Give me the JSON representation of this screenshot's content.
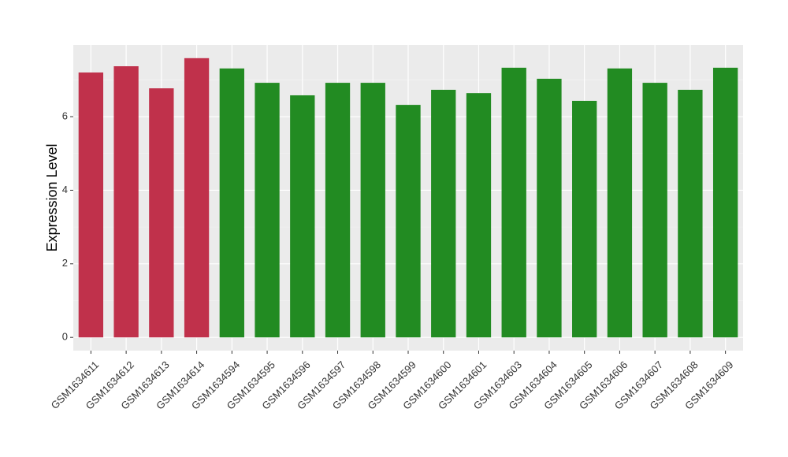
{
  "chart_data": {
    "type": "bar",
    "y_label": "Expression Level",
    "categories": [
      "GSM1634611",
      "GSM1634612",
      "GSM1634613",
      "GSM1634614",
      "GSM1634594",
      "GSM1634595",
      "GSM1634596",
      "GSM1634597",
      "GSM1634598",
      "GSM1634599",
      "GSM1634600",
      "GSM1634601",
      "GSM1634603",
      "GSM1634604",
      "GSM1634605",
      "GSM1634606",
      "GSM1634607",
      "GSM1634608",
      "GSM1634609"
    ],
    "values": [
      7.2,
      7.37,
      6.77,
      7.59,
      7.31,
      6.92,
      6.58,
      6.92,
      6.92,
      6.32,
      6.73,
      6.64,
      7.33,
      7.03,
      6.43,
      7.31,
      6.92,
      6.73,
      7.33
    ],
    "colors": [
      "#c0314b",
      "#c0314b",
      "#c0314b",
      "#c0314b",
      "#228b22",
      "#228b22",
      "#228b22",
      "#228b22",
      "#228b22",
      "#228b22",
      "#228b22",
      "#228b22",
      "#228b22",
      "#228b22",
      "#228b22",
      "#228b22",
      "#228b22",
      "#228b22",
      "#228b22"
    ],
    "ylim": [
      -0.36,
      7.95
    ],
    "yticks": [
      0,
      2,
      4,
      6
    ],
    "minor_yticks": [
      1,
      3,
      5,
      7
    ],
    "grid": true
  }
}
